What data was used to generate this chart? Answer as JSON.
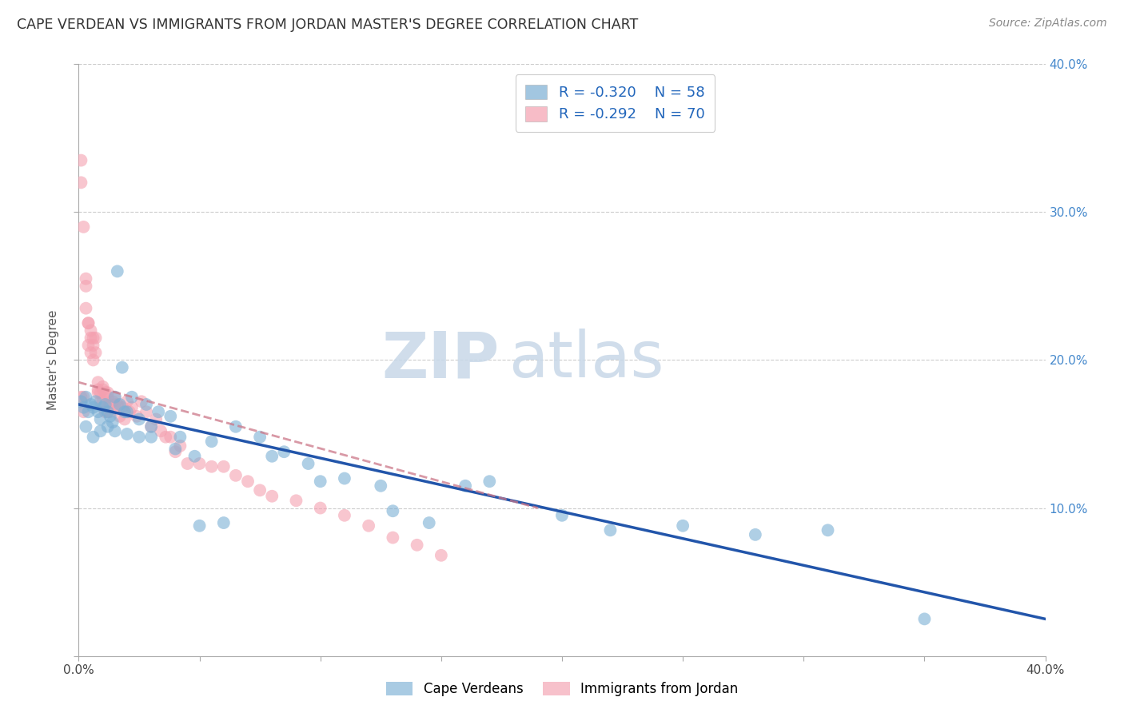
{
  "title": "CAPE VERDEAN VS IMMIGRANTS FROM JORDAN MASTER'S DEGREE CORRELATION CHART",
  "source": "Source: ZipAtlas.com",
  "ylabel": "Master's Degree",
  "xlim": [
    0.0,
    0.4
  ],
  "ylim": [
    0.0,
    0.4
  ],
  "grid_color": "#cccccc",
  "background_color": "#ffffff",
  "cape_verdean_color": "#7bafd4",
  "jordan_color": "#f4a0b0",
  "cape_verdean_R": -0.32,
  "cape_verdean_N": 58,
  "jordan_R": -0.292,
  "jordan_N": 70,
  "legend_labels": [
    "Cape Verdeans",
    "Immigrants from Jordan"
  ],
  "watermark_zip": "ZIP",
  "watermark_atlas": "atlas",
  "cape_verdean_scatter_x": [
    0.001,
    0.002,
    0.003,
    0.004,
    0.005,
    0.006,
    0.007,
    0.008,
    0.009,
    0.01,
    0.011,
    0.012,
    0.013,
    0.014,
    0.015,
    0.016,
    0.017,
    0.018,
    0.019,
    0.02,
    0.022,
    0.025,
    0.028,
    0.03,
    0.033,
    0.038,
    0.042,
    0.048,
    0.055,
    0.065,
    0.075,
    0.085,
    0.095,
    0.11,
    0.125,
    0.145,
    0.17,
    0.2,
    0.25,
    0.31,
    0.003,
    0.006,
    0.009,
    0.012,
    0.015,
    0.02,
    0.025,
    0.03,
    0.04,
    0.05,
    0.06,
    0.08,
    0.1,
    0.13,
    0.16,
    0.22,
    0.28,
    0.35
  ],
  "cape_verdean_scatter_y": [
    0.172,
    0.168,
    0.175,
    0.165,
    0.17,
    0.168,
    0.172,
    0.165,
    0.16,
    0.168,
    0.17,
    0.165,
    0.162,
    0.158,
    0.175,
    0.26,
    0.17,
    0.195,
    0.165,
    0.165,
    0.175,
    0.16,
    0.17,
    0.155,
    0.165,
    0.162,
    0.148,
    0.135,
    0.145,
    0.155,
    0.148,
    0.138,
    0.13,
    0.12,
    0.115,
    0.09,
    0.118,
    0.095,
    0.088,
    0.085,
    0.155,
    0.148,
    0.152,
    0.155,
    0.152,
    0.15,
    0.148,
    0.148,
    0.14,
    0.088,
    0.09,
    0.135,
    0.118,
    0.098,
    0.115,
    0.085,
    0.082,
    0.025
  ],
  "jordan_scatter_x": [
    0.001,
    0.001,
    0.002,
    0.002,
    0.003,
    0.003,
    0.004,
    0.004,
    0.005,
    0.005,
    0.006,
    0.006,
    0.007,
    0.007,
    0.008,
    0.008,
    0.009,
    0.009,
    0.01,
    0.01,
    0.011,
    0.011,
    0.012,
    0.012,
    0.013,
    0.013,
    0.014,
    0.015,
    0.016,
    0.017,
    0.018,
    0.019,
    0.02,
    0.021,
    0.022,
    0.024,
    0.026,
    0.028,
    0.03,
    0.032,
    0.034,
    0.036,
    0.038,
    0.04,
    0.042,
    0.045,
    0.05,
    0.055,
    0.06,
    0.065,
    0.07,
    0.075,
    0.08,
    0.09,
    0.1,
    0.11,
    0.12,
    0.13,
    0.14,
    0.15,
    0.001,
    0.002,
    0.003,
    0.004,
    0.005,
    0.006,
    0.008,
    0.01,
    0.012,
    0.015
  ],
  "jordan_scatter_y": [
    0.335,
    0.175,
    0.29,
    0.165,
    0.25,
    0.235,
    0.225,
    0.21,
    0.215,
    0.205,
    0.215,
    0.2,
    0.215,
    0.205,
    0.18,
    0.178,
    0.178,
    0.172,
    0.18,
    0.172,
    0.178,
    0.165,
    0.175,
    0.165,
    0.17,
    0.165,
    0.172,
    0.175,
    0.17,
    0.162,
    0.168,
    0.16,
    0.172,
    0.165,
    0.168,
    0.162,
    0.172,
    0.165,
    0.155,
    0.16,
    0.152,
    0.148,
    0.148,
    0.138,
    0.142,
    0.13,
    0.13,
    0.128,
    0.128,
    0.122,
    0.118,
    0.112,
    0.108,
    0.105,
    0.1,
    0.095,
    0.088,
    0.08,
    0.075,
    0.068,
    0.32,
    0.175,
    0.255,
    0.225,
    0.22,
    0.21,
    0.185,
    0.182,
    0.178,
    0.17
  ],
  "cv_trend_x": [
    0.0,
    0.4
  ],
  "cv_trend_y": [
    0.17,
    0.025
  ],
  "jd_trend_x": [
    0.0,
    0.19
  ],
  "jd_trend_y": [
    0.185,
    0.1
  ]
}
